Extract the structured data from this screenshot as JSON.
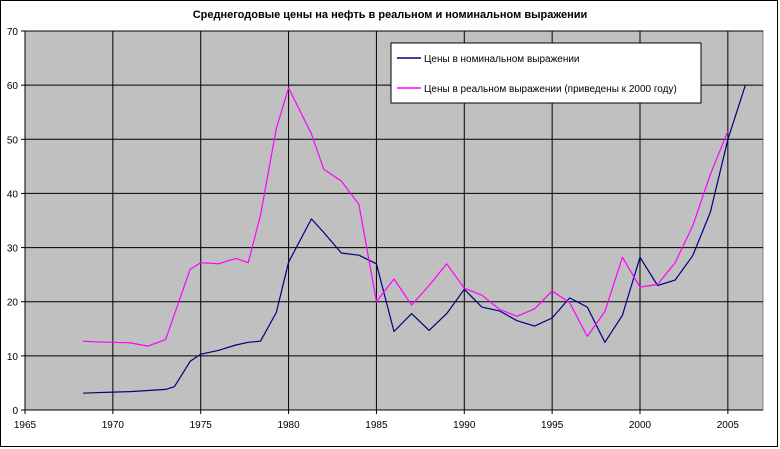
{
  "chart_data": {
    "type": "line",
    "title": "Среднегодовые цены на нефть в реальном и номинальном выражении",
    "xlabel": "",
    "ylabel": "",
    "xlim": [
      1965,
      2007
    ],
    "ylim": [
      0,
      70
    ],
    "x_ticks": [
      1965,
      1970,
      1975,
      1980,
      1985,
      1990,
      1995,
      2000,
      2005
    ],
    "y_ticks": [
      0,
      10,
      20,
      30,
      40,
      50,
      60,
      70
    ],
    "grid": true,
    "legend_position": "top-right",
    "plot_background": "#c0c0c0",
    "series": [
      {
        "name": "Цены в номинальном выражении",
        "color": "#000080",
        "points": [
          [
            1968.3,
            3.1
          ],
          [
            1969,
            3.2
          ],
          [
            1970,
            3.3
          ],
          [
            1971,
            3.4
          ],
          [
            1972,
            3.6
          ],
          [
            1973,
            3.8
          ],
          [
            1973.5,
            4.3
          ],
          [
            1974.4,
            9.0
          ],
          [
            1975,
            10.3
          ],
          [
            1976,
            11.0
          ],
          [
            1977,
            12.0
          ],
          [
            1977.7,
            12.5
          ],
          [
            1978.4,
            12.7
          ],
          [
            1979.3,
            18.0
          ],
          [
            1980,
            27.3
          ],
          [
            1981.3,
            35.3
          ],
          [
            1982,
            32.8
          ],
          [
            1983,
            29.0
          ],
          [
            1984,
            28.6
          ],
          [
            1985,
            27.0
          ],
          [
            1986,
            14.5
          ],
          [
            1987,
            17.8
          ],
          [
            1988,
            14.7
          ],
          [
            1989,
            17.8
          ],
          [
            1990,
            22.3
          ],
          [
            1991,
            19.0
          ],
          [
            1992,
            18.3
          ],
          [
            1993,
            16.5
          ],
          [
            1994,
            15.5
          ],
          [
            1995,
            17.0
          ],
          [
            1996,
            20.7
          ],
          [
            1997,
            19.0
          ],
          [
            1998,
            12.5
          ],
          [
            1999,
            17.5
          ],
          [
            2000,
            28.2
          ],
          [
            2001,
            23.0
          ],
          [
            2002,
            24.0
          ],
          [
            2003,
            28.5
          ],
          [
            2004,
            36.5
          ],
          [
            2005,
            50.0
          ],
          [
            2006,
            60.0
          ]
        ]
      },
      {
        "name": "Цены в реальном выражении (приведены к 2000 году)",
        "color": "#ff00ff",
        "points": [
          [
            1968.3,
            12.7
          ],
          [
            1969,
            12.6
          ],
          [
            1970,
            12.5
          ],
          [
            1971,
            12.4
          ],
          [
            1972,
            11.8
          ],
          [
            1973,
            13.0
          ],
          [
            1974.4,
            26.0
          ],
          [
            1975,
            27.2
          ],
          [
            1976,
            27.0
          ],
          [
            1977,
            28.0
          ],
          [
            1977.7,
            27.2
          ],
          [
            1978.4,
            36.0
          ],
          [
            1979.3,
            52.0
          ],
          [
            1980,
            59.5
          ],
          [
            1981.3,
            51.0
          ],
          [
            1982,
            44.5
          ],
          [
            1983,
            42.3
          ],
          [
            1984,
            38.0
          ],
          [
            1985,
            20.0
          ],
          [
            1986,
            24.2
          ],
          [
            1987,
            19.4
          ],
          [
            1988,
            23.0
          ],
          [
            1989,
            27.0
          ],
          [
            1990,
            22.5
          ],
          [
            1991,
            21.2
          ],
          [
            1992,
            18.6
          ],
          [
            1993,
            17.3
          ],
          [
            1994,
            18.7
          ],
          [
            1995,
            22.0
          ],
          [
            1996,
            19.8
          ],
          [
            1997,
            13.6
          ],
          [
            1998,
            18.2
          ],
          [
            1999,
            28.2
          ],
          [
            2000,
            22.7
          ],
          [
            2001,
            23.2
          ],
          [
            2002,
            27.2
          ],
          [
            2003,
            34.0
          ],
          [
            2004,
            43.5
          ],
          [
            2005,
            51.5
          ]
        ]
      }
    ]
  }
}
